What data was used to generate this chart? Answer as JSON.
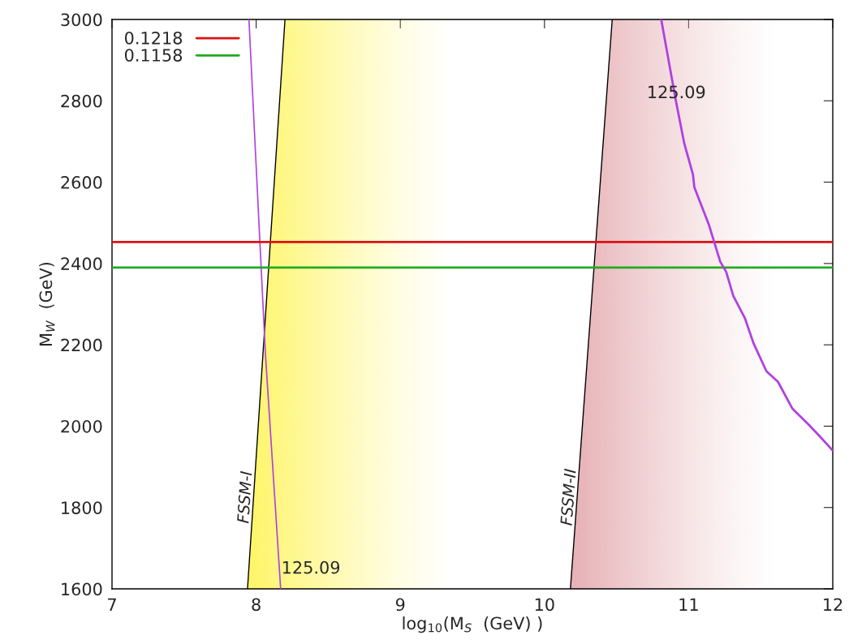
{
  "chart_data": {
    "type": "line",
    "xlabel": "log$_{10}$(M$_{S}$  (GeV) )",
    "ylabel": "M$_{W}$  (GeV)",
    "xlim": [
      7,
      12
    ],
    "ylim": [
      1600,
      3000
    ],
    "xticks": [
      7,
      8,
      9,
      10,
      11,
      12
    ],
    "yticks": [
      1600,
      1800,
      2000,
      2200,
      2400,
      2600,
      2800,
      3000
    ],
    "grid": false,
    "legend": "top left",
    "series": [
      {
        "name": "FSSM-I",
        "color": "#000000",
        "x": [
          7.94,
          8.2
        ],
        "values": [
          1600,
          3000
        ]
      },
      {
        "name": "FSSM-II",
        "color": "#000000",
        "x": [
          10.18,
          10.47
        ],
        "values": [
          1600,
          3000
        ]
      },
      {
        "name": "125.09",
        "color": "#b040e0",
        "x": [
          8.17,
          8.064,
          7.95
        ],
        "values": [
          1600,
          2178,
          3000
        ]
      },
      {
        "name": "0.1218",
        "color": "#dd1111",
        "x": [
          7,
          12
        ],
        "values": [
          2453,
          2453
        ]
      },
      {
        "name": "0.1158",
        "color": "#22aa22",
        "x": [
          7,
          12
        ],
        "values": [
          2390,
          2390
        ]
      },
      {
        "name": "125.09",
        "color": "#b040e0",
        "x": [
          10.81,
          10.91,
          10.97,
          11.03,
          11.04,
          11.14,
          11.18,
          11.22,
          11.26,
          11.31,
          11.39,
          11.45,
          11.54,
          11.62,
          11.72,
          11.83,
          11.91,
          12.0
        ],
        "values": [
          3000,
          2803,
          2695,
          2619,
          2587,
          2496,
          2450,
          2404,
          2380,
          2320,
          2266,
          2204,
          2135,
          2109,
          2043,
          2005,
          1975,
          1940
        ]
      }
    ],
    "bands": [
      {
        "axis": "x",
        "from": 7.94,
        "to": 9.4,
        "color": "#fff566"
      },
      {
        "axis": "x",
        "from": 10.18,
        "to": 11.65,
        "color": "#e6b0b4"
      }
    ]
  }
}
